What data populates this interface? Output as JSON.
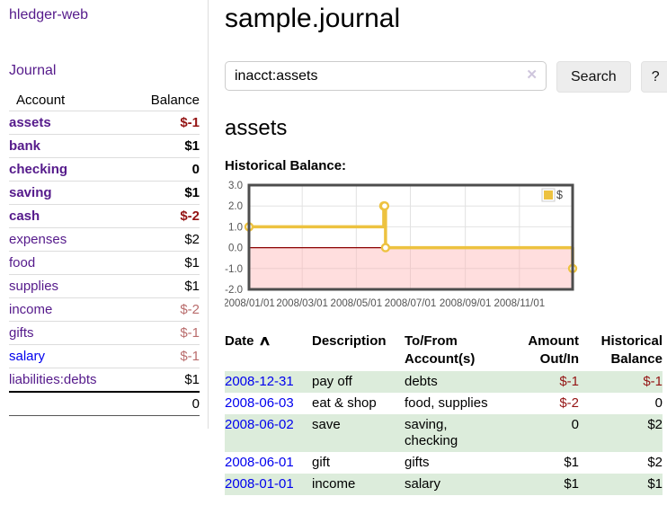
{
  "app": {
    "title": "hledger-web"
  },
  "sidebar": {
    "journal_link": "Journal",
    "table": {
      "headers": {
        "account": "Account",
        "balance": "Balance"
      },
      "accounts": [
        {
          "name": "assets",
          "balance": "$-1",
          "depth": 1,
          "active": true
        },
        {
          "name": "bank",
          "balance": "$1",
          "depth": 2,
          "active": true
        },
        {
          "name": "checking",
          "balance": "0",
          "depth": 3,
          "active": true
        },
        {
          "name": "saving",
          "balance": "$1",
          "depth": 3,
          "active": true
        },
        {
          "name": "cash",
          "balance": "$-2",
          "depth": 2,
          "active": true
        },
        {
          "name": "expenses",
          "balance": "$2",
          "depth": 1,
          "active": false
        },
        {
          "name": "food",
          "balance": "$1",
          "depth": 2,
          "active": false
        },
        {
          "name": "supplies",
          "balance": "$1",
          "depth": 2,
          "active": false
        },
        {
          "name": "income",
          "balance": "$-2",
          "depth": 1,
          "active": false
        },
        {
          "name": "gifts",
          "balance": "$-1",
          "depth": 2,
          "active": false
        },
        {
          "name": "salary",
          "balance": "$-1",
          "depth": 2,
          "active": false,
          "visited": false
        },
        {
          "name": "liabilities:debts",
          "balance": "$1",
          "depth": 1,
          "active": false
        }
      ],
      "total": "0"
    }
  },
  "header": {
    "title": "sample.journal"
  },
  "search": {
    "value": "inacct:assets",
    "clear_icon": "✕",
    "button_label": "Search",
    "help_label": "?"
  },
  "account_page": {
    "title": "assets",
    "chart_label": "Historical Balance:"
  },
  "chart_data": {
    "type": "line",
    "style": "steps",
    "title": "Historical Balance",
    "series": [
      {
        "name": "$",
        "color": "#edc240",
        "points": [
          [
            "2008-01-01",
            1
          ],
          [
            "2008-06-01",
            2
          ],
          [
            "2008-06-02",
            2
          ],
          [
            "2008-06-03",
            0
          ],
          [
            "2008-12-31",
            -1
          ]
        ]
      }
    ],
    "x_range": [
      "2008-01-01",
      "2008-12-31"
    ],
    "x_ticks": [
      "2008/01/01",
      "2008/03/01",
      "2008/05/01",
      "2008/07/01",
      "2008/09/01",
      "2008/11/01"
    ],
    "y_range": [
      -2,
      3
    ],
    "y_ticks": [
      "3.0",
      "2.0",
      "1.0",
      "0.0",
      "-1.0",
      "-2.0"
    ],
    "grid": true,
    "legend": {
      "position": "top-right",
      "label": "$"
    },
    "negative_region_color": "#ffb0b0",
    "zero_line_color": "#8b0000"
  },
  "register": {
    "headers": {
      "date": "Date",
      "sort_indicator": "∧",
      "description": "Description",
      "accounts": "To/From Account(s)",
      "amount": "Amount Out/In",
      "balance": "Historical Balance"
    },
    "rows": [
      {
        "date": "2008-12-31",
        "description": "pay off",
        "accounts": "debts",
        "amount": "$-1",
        "balance": "$-1"
      },
      {
        "date": "2008-06-03",
        "description": "eat & shop",
        "accounts": "food, supplies",
        "amount": "$-2",
        "balance": "0"
      },
      {
        "date": "2008-06-02",
        "description": "save",
        "accounts": "saving, checking",
        "amount": "0",
        "balance": "$2"
      },
      {
        "date": "2008-06-01",
        "description": "gift",
        "accounts": "gifts",
        "amount": "$1",
        "balance": "$2"
      },
      {
        "date": "2008-01-01",
        "description": "income",
        "accounts": "salary",
        "amount": "$1",
        "balance": "$1"
      }
    ]
  },
  "colors": {
    "link_purple": "#551a8b",
    "link_blue": "#0000ee",
    "negative_strong": "#941414",
    "negative_soft": "#b96c6c",
    "row_green": "#dcecdb",
    "chart_line": "#edc240",
    "chart_border": "#4d4d4d",
    "chart_grid": "#e2e2e2",
    "chart_tick_text": "#545454"
  }
}
